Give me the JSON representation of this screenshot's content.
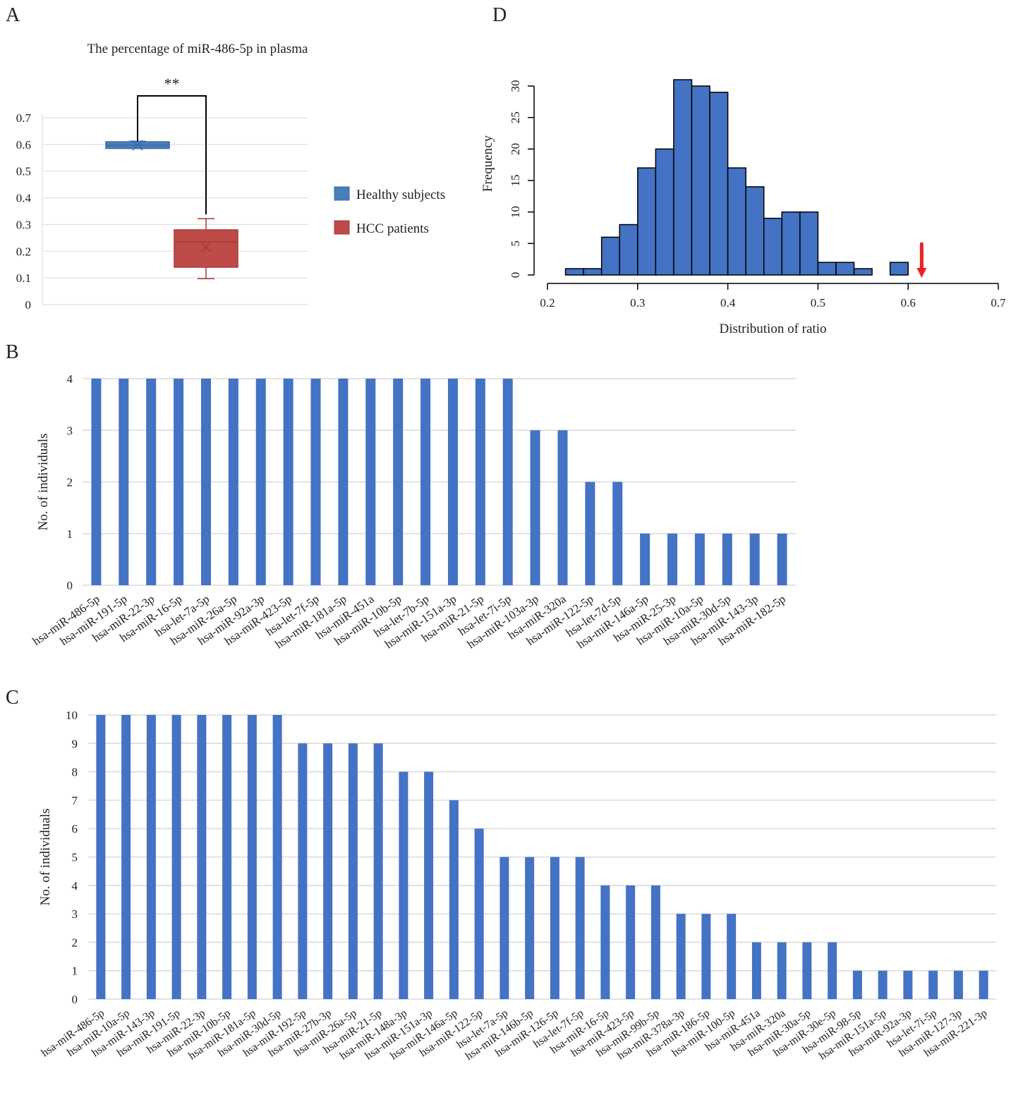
{
  "panels": {
    "A": {
      "letter": "A",
      "chart_data": {
        "type": "box",
        "title": "The percentage of miR-486-5p in plasma",
        "ylim": [
          0,
          0.7
        ],
        "yticks": [
          "0",
          "0.1",
          "0.2",
          "0.3",
          "0.4",
          "0.5",
          "0.6",
          "0.7"
        ],
        "grid": true,
        "legend_position": "right",
        "significance": "**",
        "series": [
          {
            "name": "Healthy subjects",
            "color": "#4a7ebb",
            "min": 0.585,
            "q1": 0.585,
            "median": 0.597,
            "q3": 0.61,
            "max": 0.612,
            "mean": 0.597
          },
          {
            "name": "HCC patients",
            "color": "#be4b48",
            "min": 0.097,
            "q1": 0.14,
            "median": 0.235,
            "q3": 0.28,
            "max": 0.322,
            "mean": 0.215
          }
        ]
      }
    },
    "B": {
      "letter": "B",
      "chart_data": {
        "type": "bar",
        "ylabel": "No. of individuals",
        "ylim": [
          0,
          4
        ],
        "yticks": [
          "0",
          "1",
          "2",
          "3",
          "4"
        ],
        "grid": true,
        "color": "#4472c4",
        "categories": [
          "hsa-miR-486-5p",
          "hsa-miR-191-5p",
          "hsa-miR-22-3p",
          "hsa-miR-16-5p",
          "hsa-let-7a-5p",
          "hsa-miR-26a-5p",
          "hsa-miR-92a-3p",
          "hsa-miR-423-5p",
          "hsa-let-7f-5p",
          "hsa-miR-181a-5p",
          "hsa-miR-451a",
          "hsa-miR-10b-5p",
          "hsa-let-7b-5p",
          "hsa-miR-151a-3p",
          "hsa-miR-21-5p",
          "hsa-let-7i-5p",
          "hsa-miR-103a-3p",
          "hsa-miR-320a",
          "hsa-miR-122-5p",
          "hsa-let-7d-5p",
          "hsa-miR-146a-5p",
          "hsa-miR-25-3p",
          "hsa-miR-10a-5p",
          "hsa-miR-30d-5p",
          "hsa-miR-143-3p",
          "hsa-miR-182-5p"
        ],
        "values": [
          4,
          4,
          4,
          4,
          4,
          4,
          4,
          4,
          4,
          4,
          4,
          4,
          4,
          4,
          4,
          4,
          3,
          3,
          2,
          2,
          1,
          1,
          1,
          1,
          1,
          1
        ]
      }
    },
    "C": {
      "letter": "C",
      "chart_data": {
        "type": "bar",
        "ylabel": "No. of individuals",
        "ylim": [
          0,
          10
        ],
        "yticks": [
          "0",
          "1",
          "2",
          "3",
          "4",
          "5",
          "6",
          "7",
          "8",
          "9",
          "10"
        ],
        "grid": true,
        "color": "#4472c4",
        "categories": [
          "hsa-miR-486-5p",
          "hsa-miR-10a-5p",
          "hsa-miR-143-3p",
          "hsa-miR-191-5p",
          "hsa-miR-22-3p",
          "hsa-miR-10b-5p",
          "hsa-miR-181a-5p",
          "hsa-miR-30d-5p",
          "hsa-miR-192-5p",
          "hsa-miR-27b-3p",
          "hsa-miR-26a-5p",
          "hsa-miR-21-5p",
          "hsa-miR-148a-3p",
          "hsa-miR-151a-3p",
          "hsa-miR-146a-5p",
          "hsa-miR-122-5p",
          "hsa-let-7a-5p",
          "hsa-miR-146b-5p",
          "hsa-miR-126-5p",
          "hsa-let-7f-5p",
          "hsa-miR-16-5p",
          "hsa-miR-423-5p",
          "hsa-miR-99b-5p",
          "hsa-miR-378a-3p",
          "hsa-miR-186-5p",
          "hsa-miR-100-5p",
          "hsa-miR-451a",
          "hsa-miR-320a",
          "hsa-miR-30a-5p",
          "hsa-miR-30e-5p",
          "hsa-miR-98-5p",
          "hsa-miR-151a-5p",
          "hsa-miR-92a-3p",
          "hsa-let-7i-5p",
          "hsa-miR-127-3p",
          "hsa-miR-221-3p"
        ],
        "values": [
          10,
          10,
          10,
          10,
          10,
          10,
          10,
          10,
          9,
          9,
          9,
          9,
          8,
          8,
          7,
          6,
          5,
          5,
          5,
          5,
          4,
          4,
          4,
          3,
          3,
          3,
          2,
          2,
          2,
          2,
          1,
          1,
          1,
          1,
          1,
          1
        ]
      }
    },
    "D": {
      "letter": "D",
      "chart_data": {
        "type": "histogram",
        "xlabel": "Distribution of ratio",
        "ylabel": "Frequency",
        "xlim": [
          0.2,
          0.7
        ],
        "ylim": [
          0,
          30
        ],
        "xticks": [
          "0.2",
          "0.3",
          "0.4",
          "0.5",
          "0.6",
          "0.7"
        ],
        "yticks": [
          "0",
          "5",
          "10",
          "15",
          "20",
          "25",
          "30"
        ],
        "grid": false,
        "color": "#4472c4",
        "bin_width": 0.02,
        "bin_starts": [
          0.22,
          0.24,
          0.26,
          0.28,
          0.3,
          0.32,
          0.34,
          0.36,
          0.38,
          0.4,
          0.42,
          0.44,
          0.46,
          0.48,
          0.5,
          0.52,
          0.54,
          0.56,
          0.58
        ],
        "counts": [
          1,
          1,
          6,
          8,
          17,
          20,
          31,
          30,
          29,
          17,
          14,
          9,
          10,
          10,
          2,
          2,
          1,
          0,
          2
        ],
        "marker": {
          "x": 0.615,
          "color": "#e8231d",
          "shape": "down-arrow"
        }
      }
    }
  }
}
